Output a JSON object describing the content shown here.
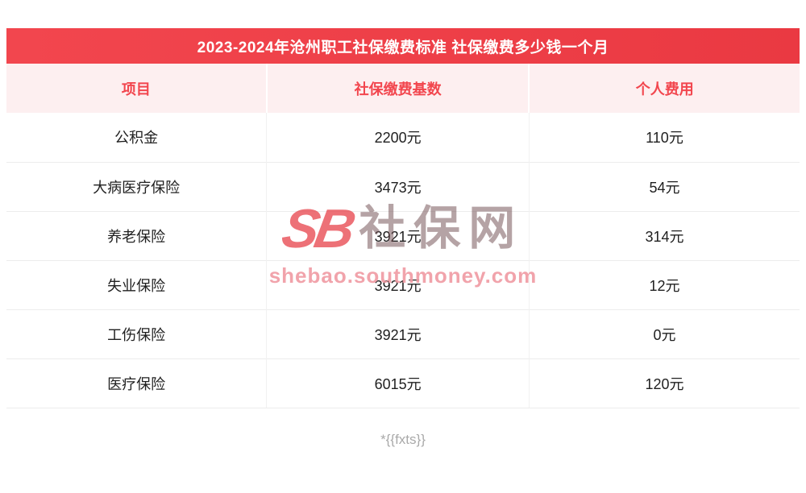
{
  "chart_data": {
    "type": "table",
    "title": "2023-2024年沧州职工社保缴费标准 社保缴费多少钱一个月",
    "columns": [
      "项目",
      "社保缴费基数",
      "个人费用"
    ],
    "rows": [
      [
        "公积金",
        "2200元",
        "110元"
      ],
      [
        "大病医疗保险",
        "3473元",
        "54元"
      ],
      [
        "养老保险",
        "3921元",
        "314元"
      ],
      [
        "失业保险",
        "3921元",
        "12元"
      ],
      [
        "工伤保险",
        "3921元",
        "0元"
      ],
      [
        "医疗保险",
        "6015元",
        "120元"
      ]
    ]
  },
  "watermark": {
    "logo": "SB",
    "site_name": "社保网",
    "url": "shebao.southmoney.com"
  },
  "footer": {
    "note": "*{{fxts}}"
  },
  "colors": {
    "title_bg_start": "#f2464e",
    "title_bg_end": "#ea3942",
    "title_text": "#ffffff",
    "header_bg": "#fdeff0",
    "header_text": "#f2464e",
    "body_text": "#1f1f1f",
    "row_border": "#ececec",
    "col_border": "#f1f1f1",
    "footer_text": "#a9a9a9",
    "watermark_red": "#e84a52",
    "watermark_dark": "#6e4a4e",
    "watermark_pink": "#f09aa2"
  }
}
